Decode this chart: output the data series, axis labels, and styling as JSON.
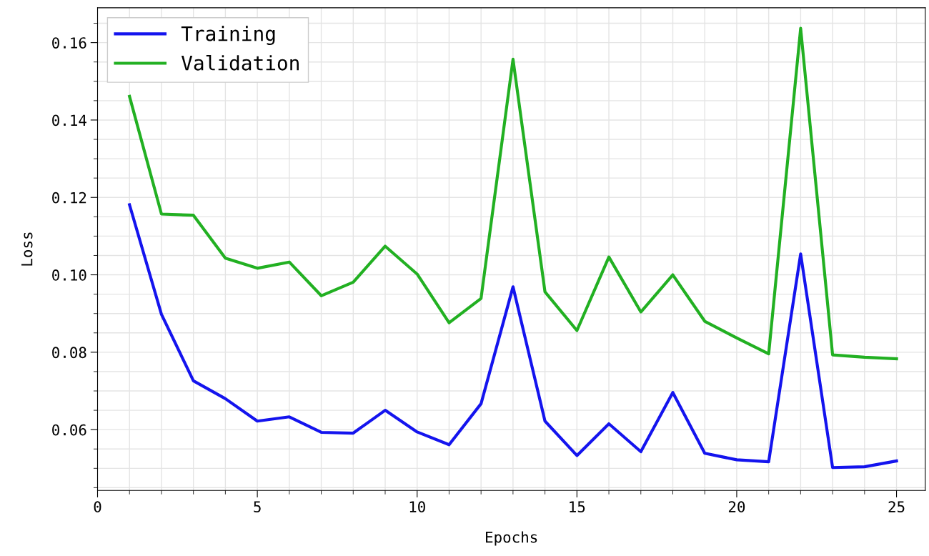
{
  "chart_data": {
    "type": "line",
    "xlabel": "Epochs",
    "ylabel": "Loss",
    "x": [
      1,
      2,
      3,
      4,
      5,
      6,
      7,
      8,
      9,
      10,
      11,
      12,
      13,
      14,
      15,
      16,
      17,
      18,
      19,
      20,
      21,
      22,
      23,
      24,
      25
    ],
    "series": [
      {
        "name": "Training",
        "color": "#1414ee",
        "values": [
          0.1181,
          0.0898,
          0.0726,
          0.068,
          0.0622,
          0.0633,
          0.0593,
          0.0591,
          0.065,
          0.0594,
          0.0561,
          0.0667,
          0.0969,
          0.0622,
          0.0533,
          0.0615,
          0.0543,
          0.0696,
          0.0539,
          0.0522,
          0.0517,
          0.1054,
          0.0502,
          0.0504,
          0.0519
        ]
      },
      {
        "name": "Validation",
        "color": "#22b022",
        "values": [
          0.1461,
          0.1157,
          0.1154,
          0.1043,
          0.1017,
          0.1033,
          0.0946,
          0.0981,
          0.1074,
          0.1002,
          0.0876,
          0.0939,
          0.1557,
          0.0956,
          0.0856,
          0.1046,
          0.0904,
          0.1,
          0.088,
          0.0837,
          0.0796,
          0.1637,
          0.0793,
          0.0787,
          0.0783
        ]
      }
    ],
    "xlim": [
      0,
      25.9
    ],
    "ylim": [
      0.0443,
      0.169
    ],
    "xticks": [
      0,
      {
        "value": 1,
        "label": null
      },
      {
        "value": 2,
        "label": null
      },
      {
        "value": 3,
        "label": null
      },
      {
        "value": 4,
        "label": null
      },
      5,
      {
        "value": 6,
        "label": null
      },
      {
        "value": 7,
        "label": null
      },
      {
        "value": 8,
        "label": null
      },
      {
        "value": 9,
        "label": null
      },
      10,
      {
        "value": 11,
        "label": null
      },
      {
        "value": 12,
        "label": null
      },
      {
        "value": 13,
        "label": null
      },
      {
        "value": 14,
        "label": null
      },
      15,
      {
        "value": 16,
        "label": null
      },
      {
        "value": 17,
        "label": null
      },
      {
        "value": 18,
        "label": null
      },
      {
        "value": 19,
        "label": null
      },
      20,
      {
        "value": 21,
        "label": null
      },
      {
        "value": 22,
        "label": null
      },
      {
        "value": 23,
        "label": null
      },
      {
        "value": 24,
        "label": null
      },
      25
    ],
    "yticks": [
      {
        "value": 0.045,
        "label": null
      },
      {
        "value": 0.05,
        "label": null
      },
      {
        "value": 0.055,
        "label": null
      },
      {
        "value": 0.06,
        "label": "0.06"
      },
      {
        "value": 0.065,
        "label": null
      },
      {
        "value": 0.07,
        "label": null
      },
      {
        "value": 0.075,
        "label": null
      },
      {
        "value": 0.08,
        "label": "0.08"
      },
      {
        "value": 0.085,
        "label": null
      },
      {
        "value": 0.09,
        "label": null
      },
      {
        "value": 0.095,
        "label": null
      },
      {
        "value": 0.1,
        "label": "0.10"
      },
      {
        "value": 0.105,
        "label": null
      },
      {
        "value": 0.11,
        "label": null
      },
      {
        "value": 0.115,
        "label": null
      },
      {
        "value": 0.12,
        "label": "0.12"
      },
      {
        "value": 0.125,
        "label": null
      },
      {
        "value": 0.13,
        "label": null
      },
      {
        "value": 0.135,
        "label": null
      },
      {
        "value": 0.14,
        "label": "0.14"
      },
      {
        "value": 0.145,
        "label": null
      },
      {
        "value": 0.15,
        "label": null
      },
      {
        "value": 0.155,
        "label": null
      },
      {
        "value": 0.16,
        "label": "0.16"
      },
      {
        "value": 0.165,
        "label": null
      }
    ],
    "grid": true,
    "legend": "top left",
    "marker": "none",
    "line_style": "solid"
  }
}
